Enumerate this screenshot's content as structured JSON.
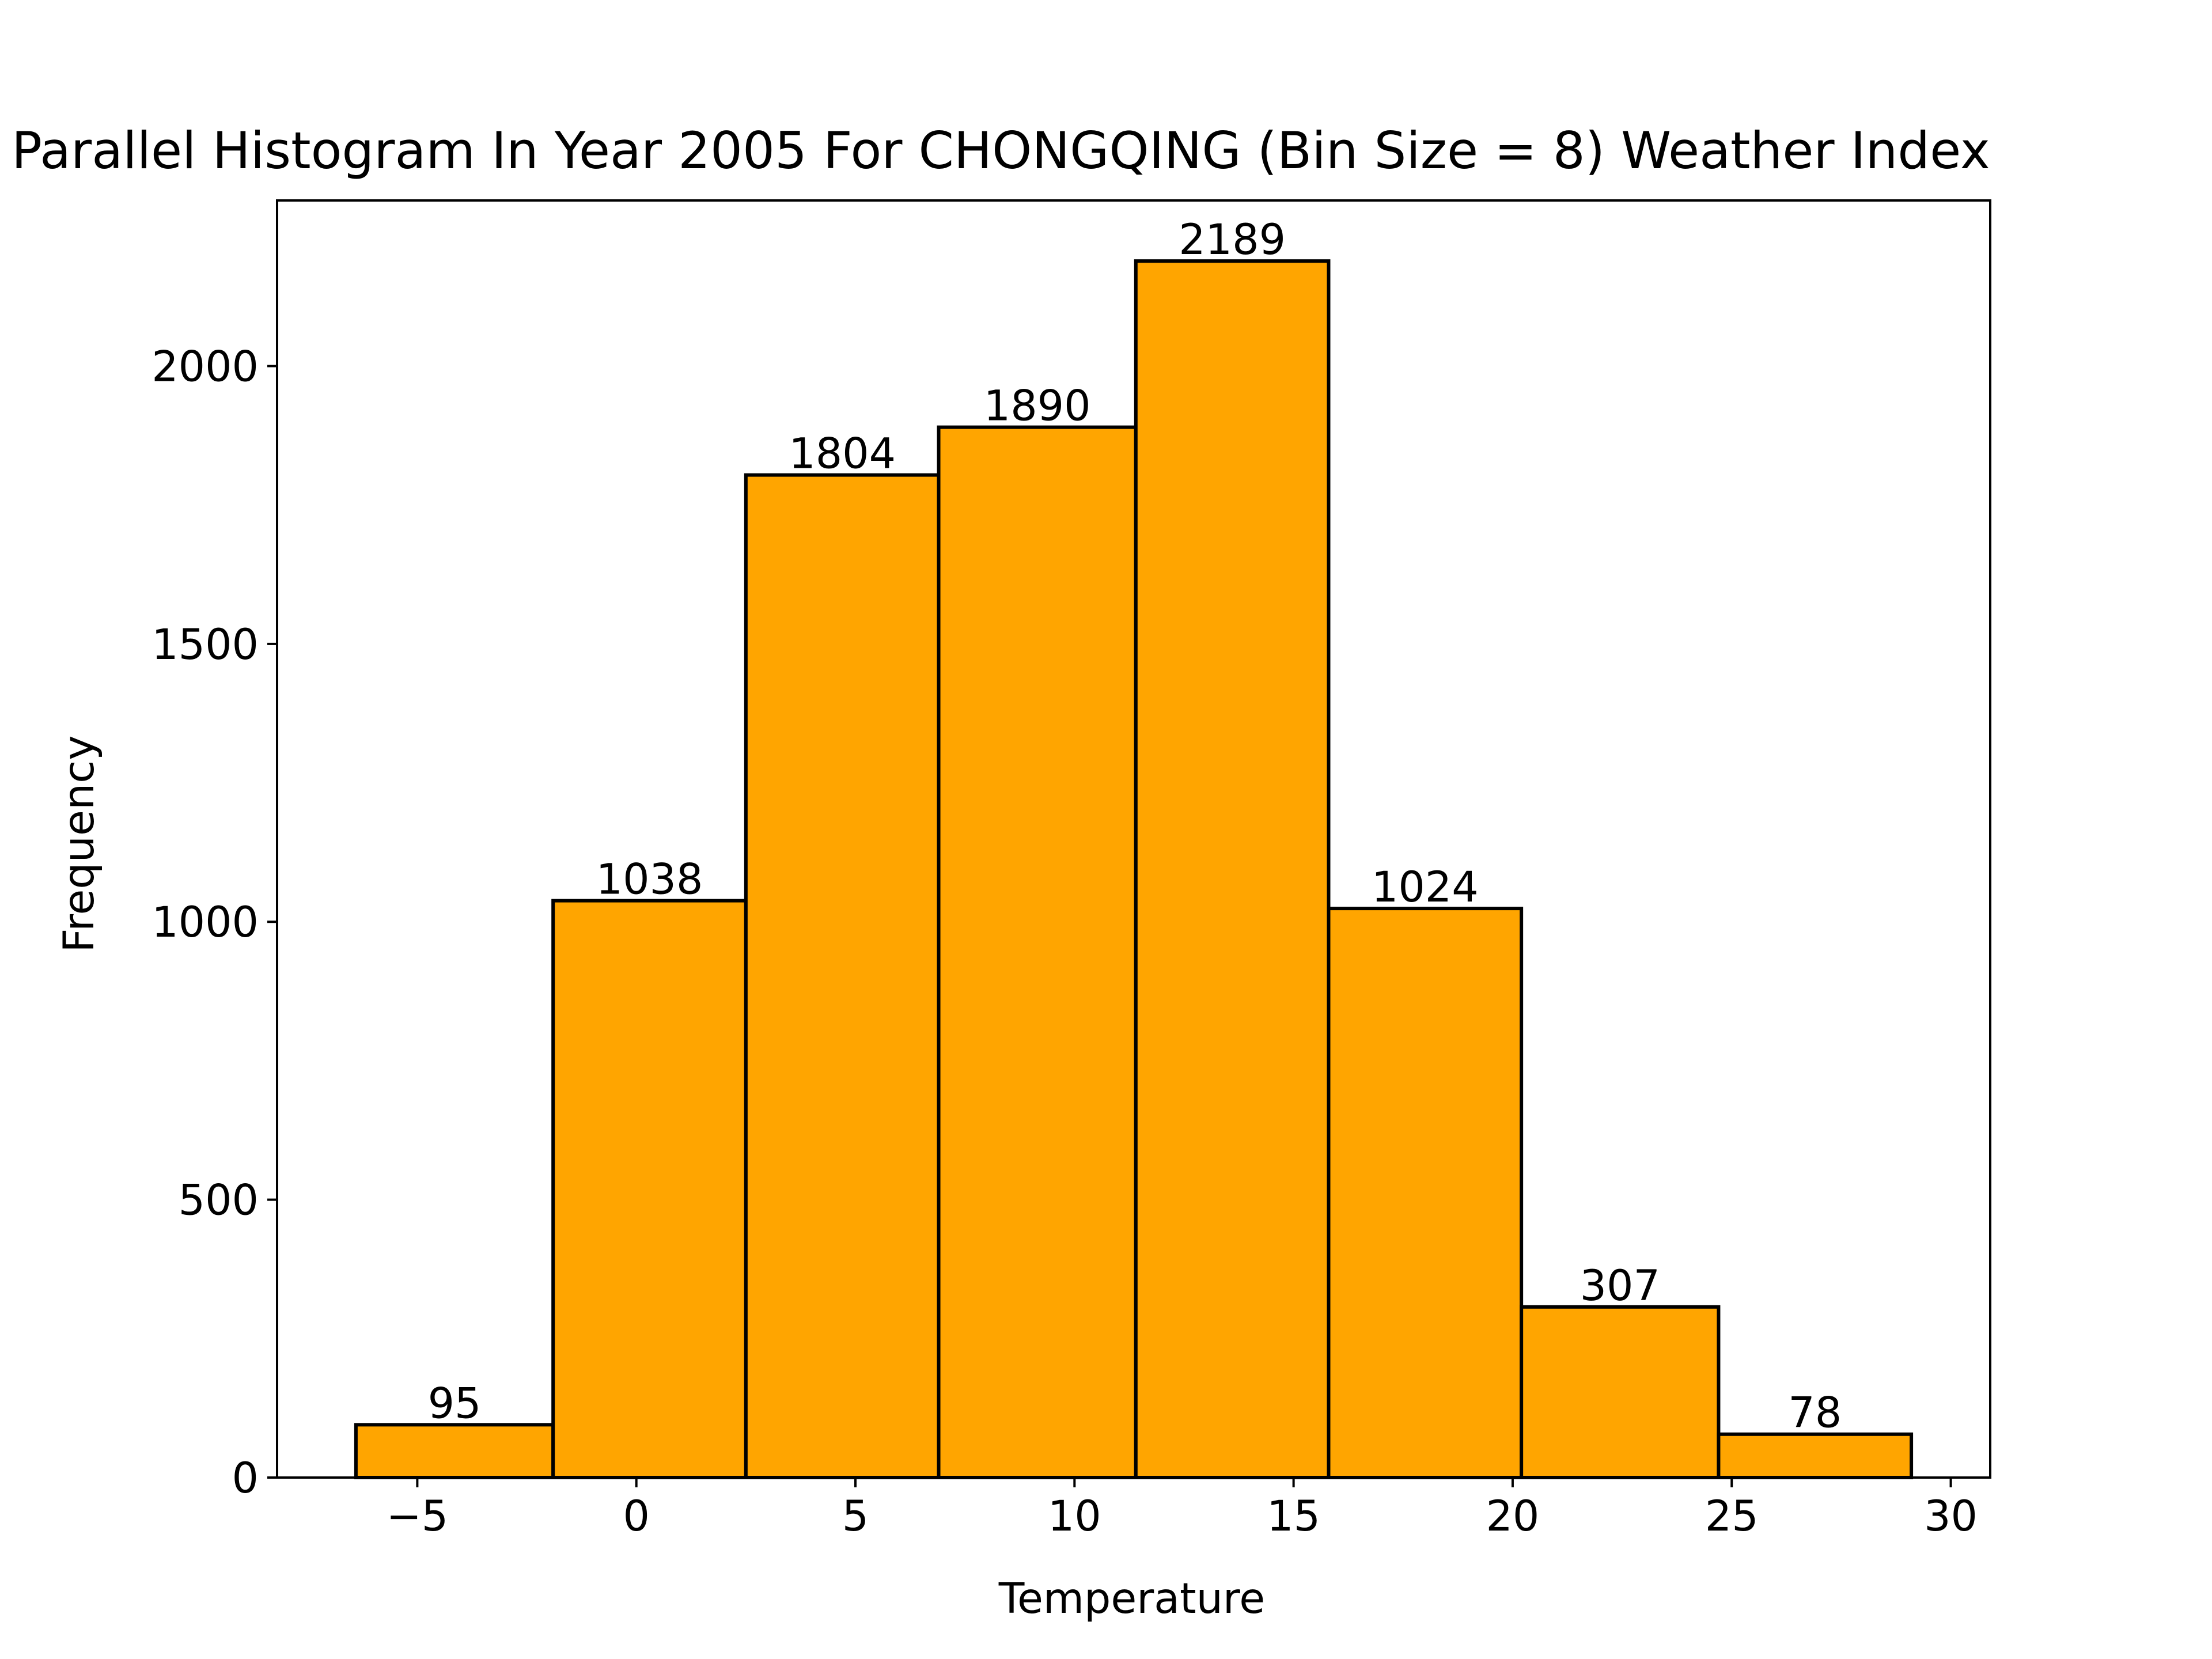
{
  "chart_data": {
    "type": "bar",
    "title": "Parallel Histogram In Year 2005 For CHONGQING (Bin Size = 8) Weather Index",
    "xlabel": "Temperature",
    "ylabel": "Frequency",
    "bins": [
      {
        "start": -6.4,
        "end": -1.9,
        "value": 95,
        "label": "95"
      },
      {
        "start": -1.9,
        "end": 2.5,
        "value": 1038,
        "label": "1038"
      },
      {
        "start": 2.5,
        "end": 6.9,
        "value": 1804,
        "label": "1804"
      },
      {
        "start": 6.9,
        "end": 11.4,
        "value": 1890,
        "label": "1890"
      },
      {
        "start": 11.4,
        "end": 15.8,
        "value": 2189,
        "label": "2189"
      },
      {
        "start": 15.8,
        "end": 20.2,
        "value": 1024,
        "label": "1024"
      },
      {
        "start": 20.2,
        "end": 24.7,
        "value": 307,
        "label": "307"
      },
      {
        "start": 24.7,
        "end": 29.1,
        "value": 78,
        "label": "78"
      }
    ],
    "xlim": [
      -8.2,
      30.9
    ],
    "ylim": [
      0,
      2298
    ],
    "x_ticks": [
      -5,
      0,
      5,
      10,
      15,
      20,
      25,
      30
    ],
    "x_tick_labels": [
      "−5",
      "0",
      "5",
      "10",
      "15",
      "20",
      "25",
      "30"
    ],
    "y_ticks": [
      0,
      500,
      1000,
      1500,
      2000
    ],
    "y_tick_labels": [
      "0",
      "500",
      "1000",
      "1500",
      "2000"
    ],
    "bar_color": "#FFA500",
    "edge_color": "#000000",
    "grid": false,
    "legend": "none"
  }
}
